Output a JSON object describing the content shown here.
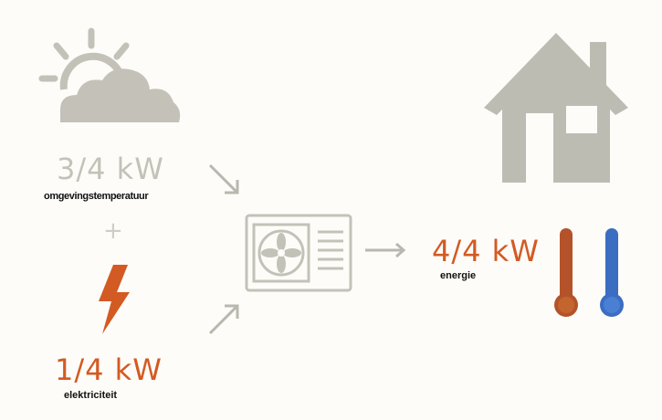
{
  "source": {
    "ambient_value": "3/4 kW",
    "ambient_label": "omgevingstemperatuur",
    "plus": "+",
    "electric_value": "1/4 kW",
    "electric_label": "elektriciteit"
  },
  "output": {
    "value": "4/4 kW",
    "label": "energie"
  },
  "colors": {
    "grey": "#c4c2b8",
    "orange": "#d35a23",
    "hot": "#b4532a",
    "cold": "#3b6dc2",
    "house": "#bdbcb3"
  },
  "icons": [
    "sun-cloud-icon",
    "lightning-icon",
    "heat-pump-icon",
    "house-icon",
    "thermometer-hot-icon",
    "thermometer-cold-icon",
    "arrow-icon"
  ]
}
